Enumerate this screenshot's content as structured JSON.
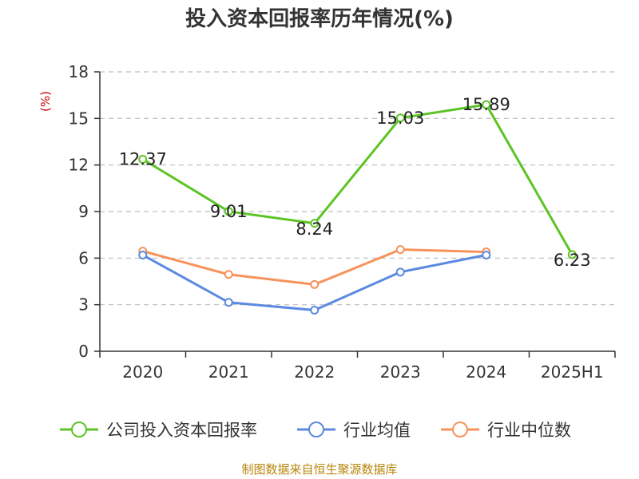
{
  "chart_data": {
    "type": "line",
    "title": "投入资本回报率历年情况(%)",
    "ylabel": "(%)",
    "categories": [
      "2020",
      "2021",
      "2022",
      "2023",
      "2024",
      "2025H1"
    ],
    "ylim": [
      0,
      18
    ],
    "yticks": [
      "0",
      "3",
      "6",
      "9",
      "12",
      "15",
      "18"
    ],
    "grid": true,
    "legend_position": "bottom",
    "series": [
      {
        "name": "公司投入资本回报率",
        "color": "#5cc424",
        "values": [
          12.37,
          9.01,
          8.24,
          15.03,
          15.89,
          6.23
        ],
        "labels": [
          "12.37",
          "9.01",
          "8.24",
          "15.03",
          "15.89",
          "6.23"
        ]
      },
      {
        "name": "行业均值",
        "color": "#5b8ae0",
        "values": [
          6.2,
          3.15,
          2.65,
          5.1,
          6.2,
          null
        ]
      },
      {
        "name": "行业中位数",
        "color": "#f7925a",
        "values": [
          6.45,
          4.95,
          4.3,
          6.55,
          6.4,
          null
        ]
      }
    ],
    "source": "制图数据来自恒生聚源数据库"
  }
}
